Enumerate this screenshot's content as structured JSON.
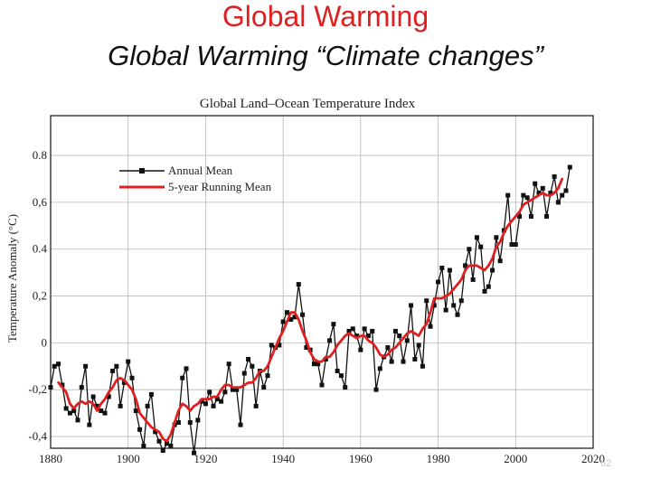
{
  "slide": {
    "title_line1": "Global Warming",
    "title_line2": "Global Warming “Climate changes”",
    "page_number": "62",
    "title_color": "#e02020"
  },
  "chart_data": {
    "type": "line",
    "title": "Global Land–Ocean Temperature Index",
    "xlabel": "",
    "ylabel": "Temperature Anomaly (°C)",
    "xlim": [
      1880,
      2020
    ],
    "ylim": [
      -0.45,
      0.97
    ],
    "x_ticks": [
      1880,
      1900,
      1920,
      1940,
      1960,
      1980,
      2000,
      2020
    ],
    "x_tick_labels": [
      "1880",
      "1900",
      "1920",
      "1940",
      "1960",
      "1980",
      "2000",
      "2020"
    ],
    "y_ticks": [
      -0.4,
      -0.2,
      0,
      0.2,
      0.4,
      0.6,
      0.8
    ],
    "y_tick_labels": [
      "-0,4",
      "-0,2",
      "0",
      "0,2",
      "0.4",
      "0,6",
      "0.8"
    ],
    "legend_position": "top-left",
    "series": [
      {
        "name": "Annual Mean",
        "color": "#111111",
        "marker": "square",
        "x": [
          1880,
          1881,
          1882,
          1883,
          1884,
          1885,
          1886,
          1887,
          1888,
          1889,
          1890,
          1891,
          1892,
          1893,
          1894,
          1895,
          1896,
          1897,
          1898,
          1899,
          1900,
          1901,
          1902,
          1903,
          1904,
          1905,
          1906,
          1907,
          1908,
          1909,
          1910,
          1911,
          1912,
          1913,
          1914,
          1915,
          1916,
          1917,
          1918,
          1919,
          1920,
          1921,
          1922,
          1923,
          1924,
          1925,
          1926,
          1927,
          1928,
          1929,
          1930,
          1931,
          1932,
          1933,
          1934,
          1935,
          1936,
          1937,
          1938,
          1939,
          1940,
          1941,
          1942,
          1943,
          1944,
          1945,
          1946,
          1947,
          1948,
          1949,
          1950,
          1951,
          1952,
          1953,
          1954,
          1955,
          1956,
          1957,
          1958,
          1959,
          1960,
          1961,
          1962,
          1963,
          1964,
          1965,
          1966,
          1967,
          1968,
          1969,
          1970,
          1971,
          1972,
          1973,
          1974,
          1975,
          1976,
          1977,
          1978,
          1979,
          1980,
          1981,
          1982,
          1983,
          1984,
          1985,
          1986,
          1987,
          1988,
          1989,
          1990,
          1991,
          1992,
          1993,
          1994,
          1995,
          1996,
          1997,
          1998,
          1999,
          2000,
          2001,
          2002,
          2003,
          2004,
          2005,
          2006,
          2007,
          2008,
          2009,
          2010,
          2011,
          2012,
          2013,
          2014
        ],
        "values": [
          -0.19,
          -0.1,
          -0.09,
          -0.18,
          -0.28,
          -0.3,
          -0.29,
          -0.33,
          -0.19,
          -0.1,
          -0.35,
          -0.23,
          -0.27,
          -0.29,
          -0.3,
          -0.23,
          -0.12,
          -0.1,
          -0.27,
          -0.17,
          -0.08,
          -0.15,
          -0.29,
          -0.37,
          -0.44,
          -0.27,
          -0.22,
          -0.38,
          -0.42,
          -0.46,
          -0.43,
          -0.44,
          -0.35,
          -0.34,
          -0.15,
          -0.11,
          -0.34,
          -0.47,
          -0.33,
          -0.25,
          -0.26,
          -0.21,
          -0.27,
          -0.24,
          -0.25,
          -0.21,
          -0.09,
          -0.2,
          -0.2,
          -0.35,
          -0.13,
          -0.07,
          -0.1,
          -0.27,
          -0.12,
          -0.19,
          -0.14,
          -0.01,
          -0.02,
          -0.01,
          0.09,
          0.13,
          0.1,
          0.11,
          0.25,
          0.12,
          -0.02,
          -0.03,
          -0.09,
          -0.09,
          -0.18,
          -0.07,
          0.01,
          0.08,
          -0.12,
          -0.14,
          -0.19,
          0.05,
          0.06,
          0.03,
          -0.03,
          0.06,
          0.03,
          0.05,
          -0.2,
          -0.11,
          -0.06,
          -0.02,
          -0.08,
          0.05,
          0.03,
          -0.08,
          0.01,
          0.16,
          -0.07,
          -0.01,
          -0.1,
          0.18,
          0.07,
          0.16,
          0.26,
          0.32,
          0.14,
          0.31,
          0.16,
          0.12,
          0.18,
          0.33,
          0.4,
          0.27,
          0.45,
          0.41,
          0.22,
          0.24,
          0.31,
          0.45,
          0.35,
          0.48,
          0.63,
          0.42,
          0.42,
          0.54,
          0.63,
          0.62,
          0.54,
          0.68,
          0.64,
          0.66,
          0.54,
          0.64,
          0.71,
          0.6,
          0.63,
          0.65,
          0.75
        ]
      },
      {
        "name": "5-year Running Mean",
        "color": "#e02020",
        "marker": "none",
        "x": [
          1882,
          1883,
          1884,
          1885,
          1886,
          1887,
          1888,
          1889,
          1890,
          1891,
          1892,
          1893,
          1894,
          1895,
          1896,
          1897,
          1898,
          1899,
          1900,
          1901,
          1902,
          1903,
          1904,
          1905,
          1906,
          1907,
          1908,
          1909,
          1910,
          1911,
          1912,
          1913,
          1914,
          1915,
          1916,
          1917,
          1918,
          1919,
          1920,
          1921,
          1922,
          1923,
          1924,
          1925,
          1926,
          1927,
          1928,
          1929,
          1930,
          1931,
          1932,
          1933,
          1934,
          1935,
          1936,
          1937,
          1938,
          1939,
          1940,
          1941,
          1942,
          1943,
          1944,
          1945,
          1946,
          1947,
          1948,
          1949,
          1950,
          1951,
          1952,
          1953,
          1954,
          1955,
          1956,
          1957,
          1958,
          1959,
          1960,
          1961,
          1962,
          1963,
          1964,
          1965,
          1966,
          1967,
          1968,
          1969,
          1970,
          1971,
          1972,
          1973,
          1974,
          1975,
          1976,
          1977,
          1978,
          1979,
          1980,
          1981,
          1982,
          1983,
          1984,
          1985,
          1986,
          1987,
          1988,
          1989,
          1990,
          1991,
          1992,
          1993,
          1994,
          1995,
          1996,
          1997,
          1998,
          1999,
          2000,
          2001,
          2002,
          2003,
          2004,
          2005,
          2006,
          2007,
          2008,
          2009,
          2010,
          2011,
          2012
        ],
        "values": [
          -0.17,
          -0.19,
          -0.21,
          -0.26,
          -0.28,
          -0.26,
          -0.25,
          -0.26,
          -0.25,
          -0.26,
          -0.29,
          -0.26,
          -0.24,
          -0.21,
          -0.19,
          -0.16,
          -0.15,
          -0.16,
          -0.18,
          -0.2,
          -0.24,
          -0.3,
          -0.32,
          -0.34,
          -0.36,
          -0.37,
          -0.38,
          -0.41,
          -0.42,
          -0.39,
          -0.34,
          -0.29,
          -0.26,
          -0.27,
          -0.29,
          -0.27,
          -0.26,
          -0.24,
          -0.24,
          -0.24,
          -0.23,
          -0.23,
          -0.2,
          -0.18,
          -0.18,
          -0.19,
          -0.19,
          -0.19,
          -0.18,
          -0.17,
          -0.17,
          -0.15,
          -0.12,
          -0.12,
          -0.1,
          -0.06,
          -0.02,
          0.02,
          0.05,
          0.09,
          0.13,
          0.13,
          0.1,
          0.05,
          0.01,
          -0.04,
          -0.07,
          -0.08,
          -0.08,
          -0.06,
          -0.06,
          -0.04,
          -0.01,
          0.01,
          0.03,
          0.04,
          0.03,
          0.02,
          0.03,
          0.03,
          0.01,
          0.0,
          -0.02,
          -0.05,
          -0.06,
          -0.05,
          -0.03,
          -0.02,
          0.0,
          0.02,
          0.04,
          0.05,
          0.04,
          0.03,
          0.06,
          0.08,
          0.13,
          0.19,
          0.19,
          0.19,
          0.2,
          0.21,
          0.23,
          0.25,
          0.27,
          0.31,
          0.33,
          0.33,
          0.33,
          0.32,
          0.31,
          0.33,
          0.36,
          0.41,
          0.43,
          0.47,
          0.5,
          0.52,
          0.54,
          0.56,
          0.59,
          0.6,
          0.61,
          0.62,
          0.63,
          0.64,
          0.63,
          0.63,
          0.64,
          0.66,
          0.7
        ]
      }
    ]
  }
}
